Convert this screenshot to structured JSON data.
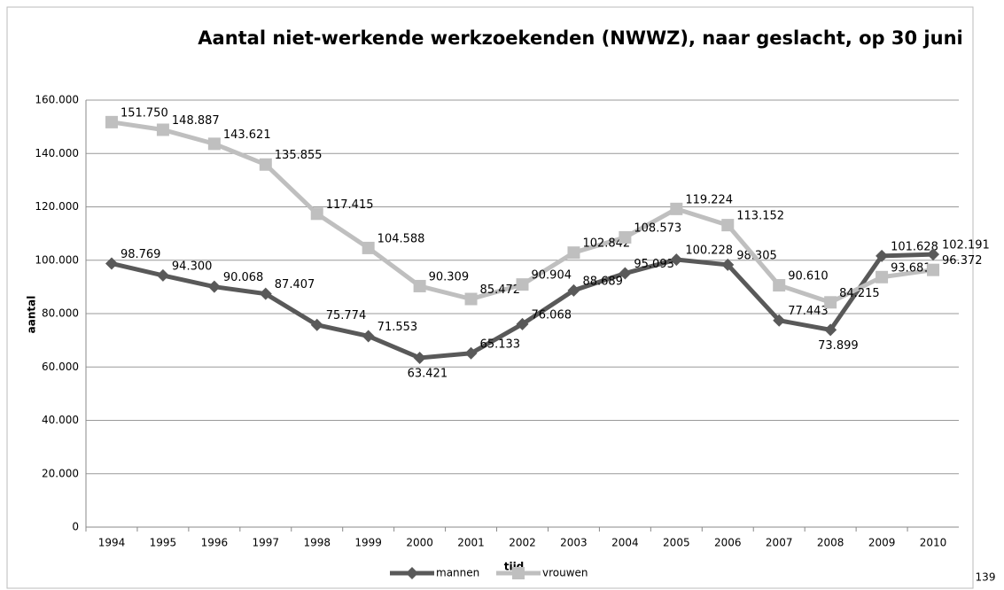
{
  "chart_data": {
    "type": "line",
    "title": "Aantal niet-werkende werkzoekenden (NWWZ), naar geslacht, op 30 juni",
    "x_label": "tijd",
    "y_label": "aantal",
    "categories": [
      "1994",
      "1995",
      "1996",
      "1997",
      "1998",
      "1999",
      "2000",
      "2001",
      "2002",
      "2003",
      "2004",
      "2005",
      "2006",
      "2007",
      "2008",
      "2009",
      "2010"
    ],
    "series": [
      {
        "name": "mannen",
        "color": "#595959",
        "marker": "diamond",
        "values": [
          98769,
          94300,
          90068,
          87407,
          75774,
          71553,
          63421,
          65133,
          76068,
          88689,
          95093,
          100228,
          98305,
          77443,
          73899,
          101628,
          102191
        ],
        "value_labels": [
          "98.769",
          "94.300",
          "90.068",
          "87.407",
          "75.774",
          "71.553",
          "63.421",
          "65.133",
          "76.068",
          "88.689",
          "95.093",
          "100.228",
          "98.305",
          "77.443",
          "73.899",
          "101.628",
          "102.191"
        ]
      },
      {
        "name": "vrouwen",
        "color": "#bfbfbf",
        "marker": "square",
        "values": [
          151750,
          148887,
          143621,
          135855,
          117415,
          104588,
          90309,
          85472,
          90904,
          102842,
          108573,
          119224,
          113152,
          90610,
          84215,
          93681,
          96372
        ],
        "value_labels": [
          "151.750",
          "148.887",
          "143.621",
          "135.855",
          "117.415",
          "104.588",
          "90.309",
          "85.472",
          "90.904",
          "102.842",
          "108.573",
          "119.224",
          "113.152",
          "90.610",
          "84.215",
          "93.681",
          "96.372"
        ]
      }
    ],
    "ylim": [
      0,
      160000
    ],
    "yticks": [
      0,
      {
        "value": 20000,
        "label": "20.000"
      },
      {
        "value": 40000,
        "label": "40.000"
      },
      {
        "value": 60000,
        "label": "60.000"
      },
      {
        "value": 80000,
        "label": "80.000"
      },
      {
        "value": 100000,
        "label": "100.000"
      },
      {
        "value": 120000,
        "label": "120.000"
      },
      {
        "value": 140000,
        "label": "140.000"
      },
      {
        "value": 160000,
        "label": "160.000"
      }
    ],
    "grid": true,
    "legend": "bottom"
  },
  "page_number": "139"
}
